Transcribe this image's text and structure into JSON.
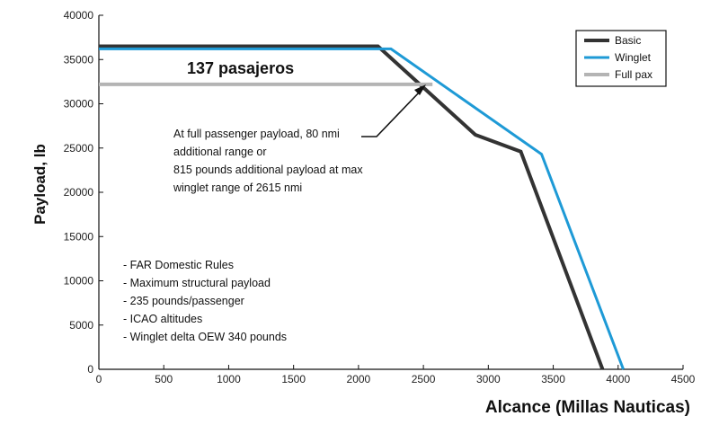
{
  "chart_data": {
    "type": "line",
    "xlabel": "Alcance (Millas Nauticas)",
    "ylabel": "Payload, lb",
    "xlim": [
      0,
      4500
    ],
    "ylim": [
      0,
      40000
    ],
    "x_ticks": [
      0,
      500,
      1000,
      1500,
      2000,
      2500,
      3000,
      3500,
      4000,
      4500
    ],
    "y_ticks": [
      0,
      5000,
      10000,
      15000,
      20000,
      25000,
      30000,
      35000,
      40000
    ],
    "grid": false,
    "legend_position": "top-right",
    "series": [
      {
        "name": "Basic",
        "color": "#333333",
        "width": 4,
        "points": [
          [
            0,
            36500
          ],
          [
            2150,
            36500
          ],
          [
            2900,
            26500
          ],
          [
            3250,
            24600
          ],
          [
            3880,
            0
          ]
        ]
      },
      {
        "name": "Winglet",
        "color": "#1e9ad6",
        "width": 3,
        "points": [
          [
            0,
            36200
          ],
          [
            2250,
            36200
          ],
          [
            3410,
            24300
          ],
          [
            4040,
            0
          ]
        ]
      },
      {
        "name": "Full pax",
        "color": "#b4b4b4",
        "width": 4,
        "points": [
          [
            0,
            32200
          ],
          [
            2570,
            32200
          ]
        ]
      }
    ],
    "annotations": {
      "passengers": "137 pasajeros",
      "callout_lines": [
        "At full passenger payload, 80 nmi",
        "additional range or",
        "815 pounds additional payload at max",
        "winglet range of 2615 nmi"
      ],
      "rules": [
        "- FAR Domestic Rules",
        "- Maximum structural payload",
        "- 235 pounds/passenger",
        "- ICAO altitudes",
        "- Winglet delta OEW 340 pounds"
      ]
    }
  }
}
